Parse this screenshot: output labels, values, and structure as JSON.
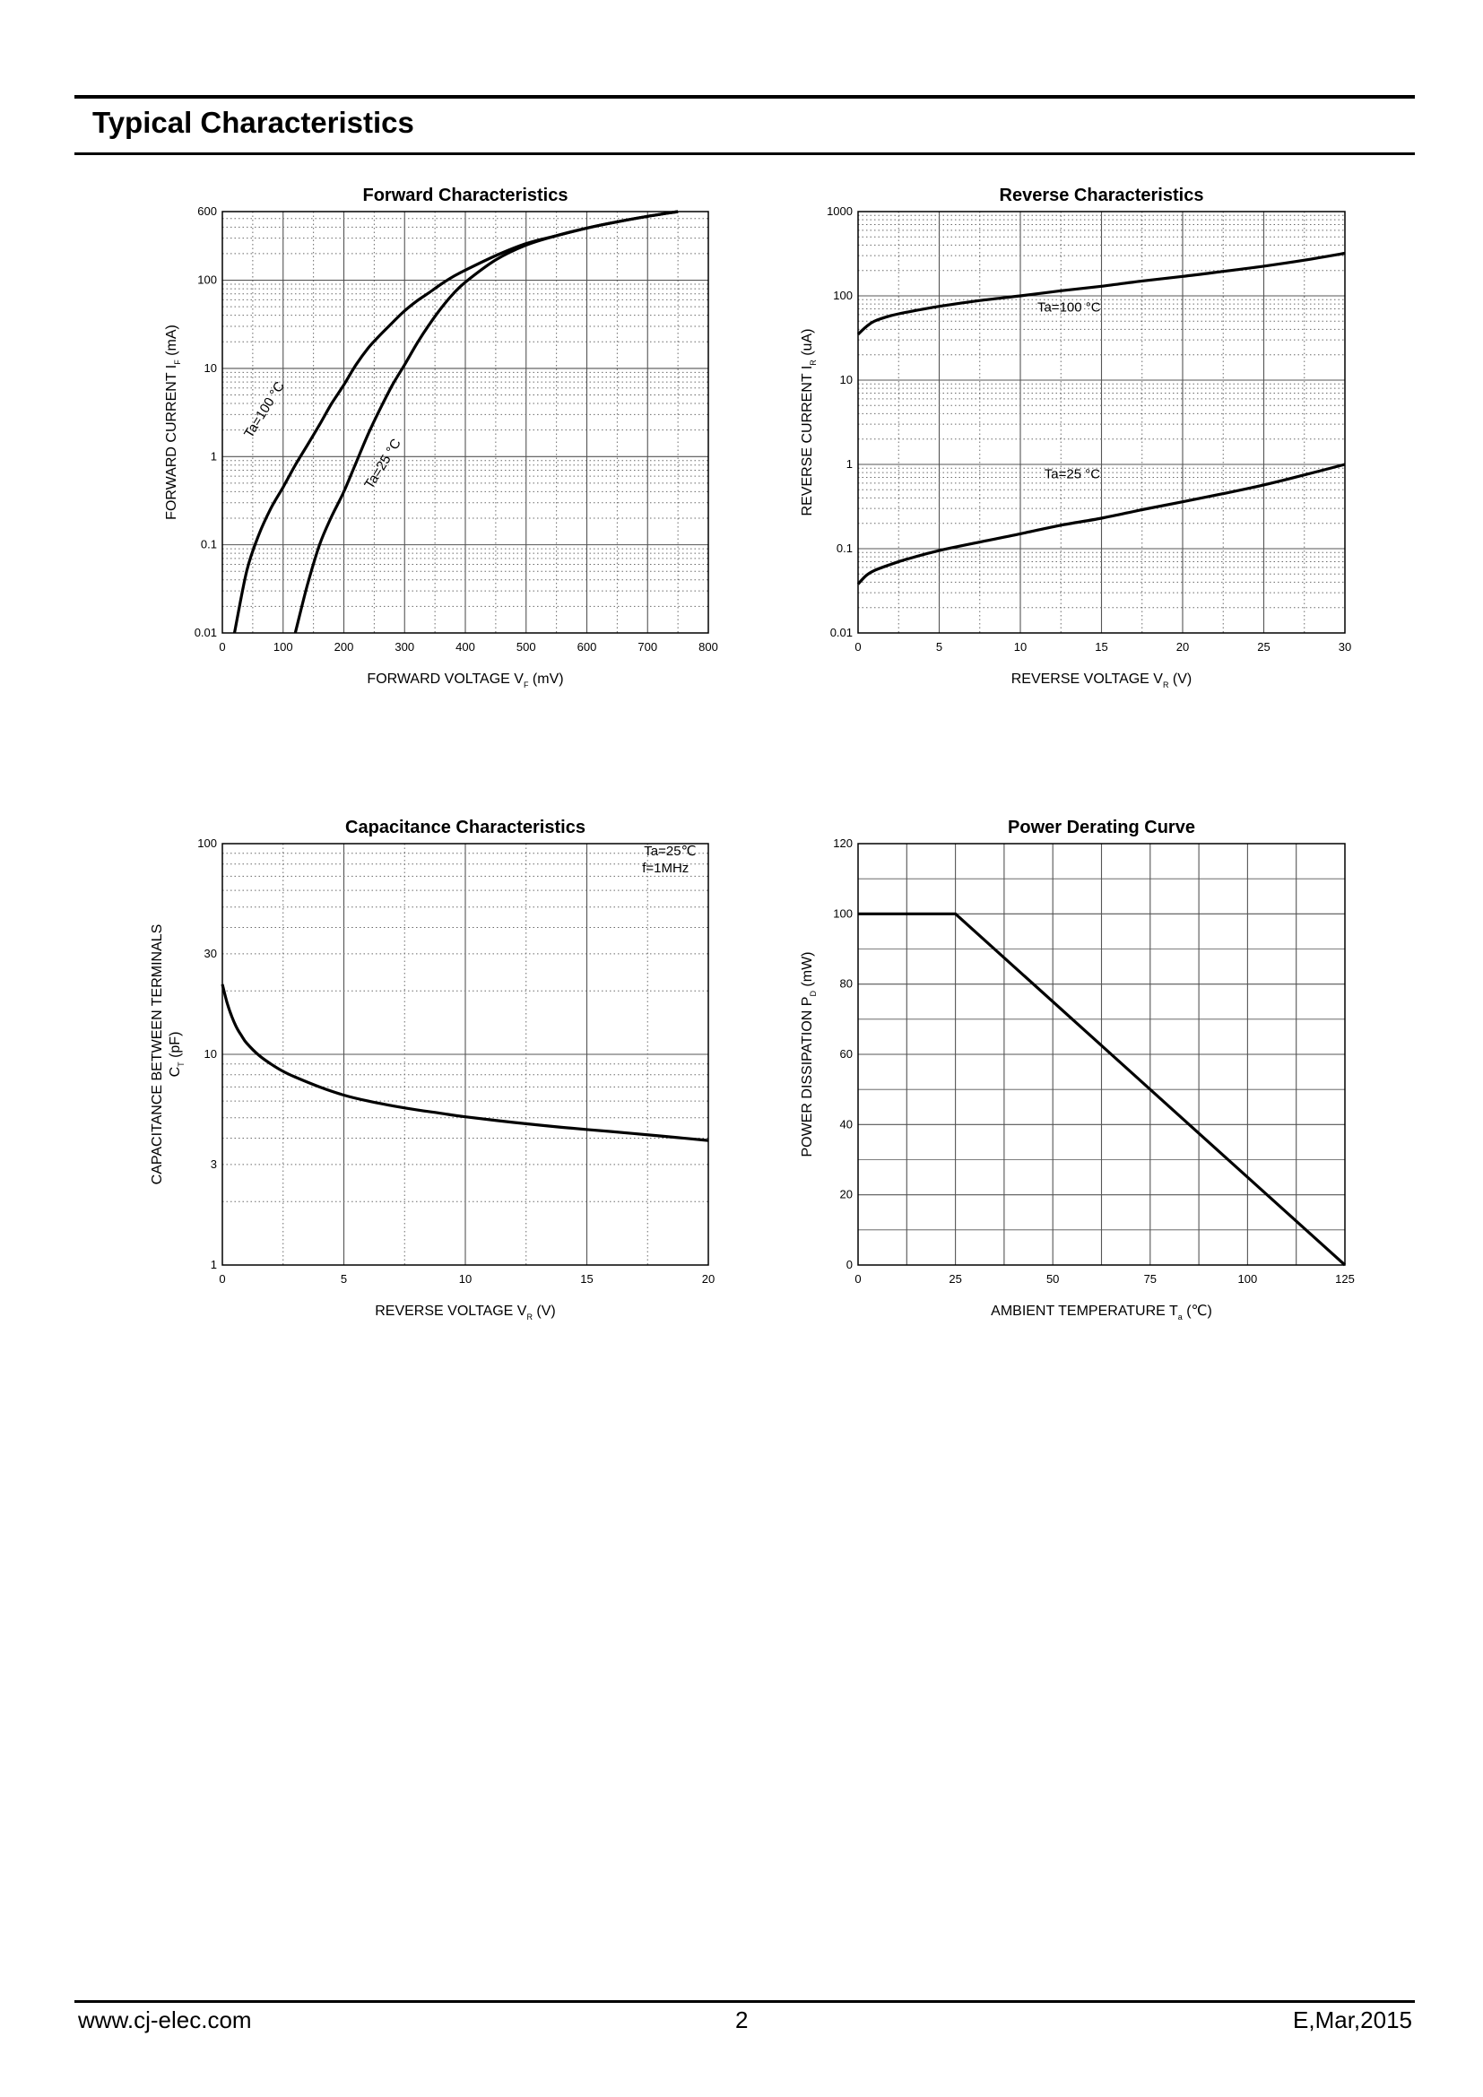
{
  "header": {
    "title": "Typical Characteristics"
  },
  "footer": {
    "website": "www.cj-elec.com",
    "page_number": "2",
    "revision": "E,Mar,2015"
  },
  "chart_data": [
    {
      "id": "forward",
      "type": "line",
      "title": "Forward    Characteristics",
      "xlabel": {
        "main": "FORWARD VOLTAGE    V",
        "sub": "F",
        "unit": "(mV)"
      },
      "ylabel": {
        "main": "FORWARD CURRENT    I",
        "sub": "F",
        "unit": "(mA)"
      },
      "x_scale": "linear",
      "y_scale": "log",
      "xlim": [
        0,
        800
      ],
      "ylim": [
        0.01,
        600
      ],
      "x_ticks": [
        {
          "v": 0,
          "label": "0"
        },
        {
          "v": 100,
          "label": "100"
        },
        {
          "v": 200,
          "label": "200"
        },
        {
          "v": 300,
          "label": "300"
        },
        {
          "v": 400,
          "label": "400"
        },
        {
          "v": 500,
          "label": "500"
        },
        {
          "v": 600,
          "label": "600"
        },
        {
          "v": 700,
          "label": "700"
        },
        {
          "v": 800,
          "label": "800"
        }
      ],
      "y_ticks": [
        {
          "v": 0.01,
          "label": "0.01"
        },
        {
          "v": 0.1,
          "label": "0.1"
        },
        {
          "v": 1,
          "label": "1"
        },
        {
          "v": 10,
          "label": "10"
        },
        {
          "v": 100,
          "label": "100"
        },
        {
          "v": 600,
          "label": "600"
        }
      ],
      "grid": true,
      "series": [
        {
          "name": "Ta=100 °C",
          "x": [
            20,
            40,
            60,
            80,
            100,
            120,
            140,
            160,
            180,
            200,
            220,
            240,
            260,
            280,
            300,
            320,
            340,
            360,
            380,
            400,
            450,
            500,
            550,
            600,
            650,
            700,
            750
          ],
          "y": [
            0.01,
            0.05,
            0.13,
            0.26,
            0.45,
            0.8,
            1.35,
            2.3,
            4,
            6.5,
            11,
            17,
            24,
            33,
            45,
            58,
            72,
            90,
            110,
            130,
            190,
            260,
            320,
            390,
            460,
            530,
            600
          ]
        },
        {
          "name": "Ta=25 °C",
          "x": [
            120,
            140,
            160,
            180,
            200,
            220,
            240,
            260,
            280,
            300,
            320,
            340,
            360,
            380,
            400,
            450,
            500,
            550,
            600,
            650,
            700,
            750
          ],
          "y": [
            0.01,
            0.035,
            0.1,
            0.21,
            0.4,
            0.85,
            1.8,
            3.5,
            6.5,
            11,
            19,
            31,
            48,
            70,
            95,
            170,
            250,
            320,
            390,
            460,
            530,
            600
          ]
        }
      ],
      "annotations": [
        {
          "text": "Ta=100 °C",
          "x": 75,
          "y": 3.2,
          "angle": -58
        },
        {
          "text": "Ta=25 °C",
          "x": 270,
          "y": 0.78,
          "angle": -58
        }
      ]
    },
    {
      "id": "reverse",
      "type": "line",
      "title": "Reverse    Characteristics",
      "xlabel": {
        "main": "REVERSE VOLTAGE    V",
        "sub": "R",
        "unit": "(V)"
      },
      "ylabel": {
        "main": "REVERSE CURRENT    I",
        "sub": "R",
        "unit": "(uA)"
      },
      "x_scale": "linear",
      "y_scale": "log",
      "xlim": [
        0,
        30
      ],
      "ylim": [
        0.01,
        1000
      ],
      "x_ticks": [
        {
          "v": 0,
          "label": "0"
        },
        {
          "v": 5,
          "label": "5"
        },
        {
          "v": 10,
          "label": "10"
        },
        {
          "v": 15,
          "label": "15"
        },
        {
          "v": 20,
          "label": "20"
        },
        {
          "v": 25,
          "label": "25"
        },
        {
          "v": 30,
          "label": "30"
        }
      ],
      "y_ticks": [
        {
          "v": 0.01,
          "label": "0.01"
        },
        {
          "v": 0.1,
          "label": "0.1"
        },
        {
          "v": 1,
          "label": "1"
        },
        {
          "v": 10,
          "label": "10"
        },
        {
          "v": 100,
          "label": "100"
        },
        {
          "v": 1000,
          "label": "1000"
        }
      ],
      "grid": true,
      "series": [
        {
          "name": "Ta=100 °C",
          "x": [
            0,
            0.5,
            1,
            2,
            3,
            5,
            7.5,
            10,
            12.5,
            15,
            17.5,
            20,
            22.5,
            25,
            27.5,
            30
          ],
          "y": [
            35,
            43,
            50,
            58,
            64,
            75,
            88,
            100,
            115,
            130,
            150,
            170,
            195,
            225,
            265,
            320
          ]
        },
        {
          "name": "Ta=25 °C",
          "x": [
            0,
            0.5,
            1,
            2,
            3,
            5,
            7.5,
            10,
            12.5,
            15,
            17.5,
            20,
            22.5,
            25,
            27.5,
            30
          ],
          "y": [
            0.038,
            0.048,
            0.055,
            0.065,
            0.075,
            0.095,
            0.12,
            0.15,
            0.19,
            0.23,
            0.29,
            0.36,
            0.45,
            0.57,
            0.75,
            1.0
          ]
        }
      ],
      "annotations": [
        {
          "text": "Ta=100 °C",
          "x": 13.0,
          "y": 65,
          "angle": 0
        },
        {
          "text": "Ta=25 °C",
          "x": 13.2,
          "y": 0.68,
          "angle": 0
        }
      ]
    },
    {
      "id": "capacitance",
      "type": "line",
      "title": "Capacitance Characteristics",
      "xlabel": {
        "main": "REVERSE VOLTAGE    V",
        "sub": "R",
        "unit": "(V)"
      },
      "ylabel": {
        "main": "CAPACITANCE BETWEEN TERMINALS",
        "main2": "C",
        "sub": "T",
        "unit": "(pF)"
      },
      "x_scale": "linear",
      "y_scale": "log",
      "xlim": [
        0,
        20
      ],
      "ylim": [
        1,
        100
      ],
      "x_ticks": [
        {
          "v": 0,
          "label": "0"
        },
        {
          "v": 5,
          "label": "5"
        },
        {
          "v": 10,
          "label": "10"
        },
        {
          "v": 15,
          "label": "15"
        },
        {
          "v": 20,
          "label": "20"
        }
      ],
      "y_ticks": [
        {
          "v": 1,
          "label": "1"
        },
        {
          "v": 3,
          "label": "3"
        },
        {
          "v": 10,
          "label": "10"
        },
        {
          "v": 30,
          "label": "30"
        },
        {
          "v": 100,
          "label": "100"
        }
      ],
      "grid": true,
      "series": [
        {
          "name": "",
          "x": [
            0,
            0.2,
            0.4,
            0.6,
            0.8,
            1,
            1.5,
            2,
            2.5,
            3,
            4,
            5,
            6,
            7,
            8,
            9,
            10,
            12,
            14,
            16,
            18,
            20
          ],
          "y": [
            21.5,
            17.5,
            15.0,
            13.3,
            12.2,
            11.3,
            9.9,
            9.0,
            8.3,
            7.8,
            7.0,
            6.4,
            6.0,
            5.7,
            5.45,
            5.25,
            5.05,
            4.75,
            4.5,
            4.3,
            4.1,
            3.9
          ]
        }
      ],
      "annotations": [
        {
          "text": "Ta=25℃",
          "x": 19.5,
          "y": 88,
          "anchor": "end",
          "angle": 0
        },
        {
          "text": "f=1MHz",
          "x": 19.2,
          "y": 73,
          "anchor": "end",
          "angle": 0
        }
      ]
    },
    {
      "id": "derating",
      "type": "line",
      "title": "Power Derating Curve",
      "xlabel": {
        "main": "AMBIENT TEMPERATURE    T",
        "sub": "a",
        "unit": "(℃)"
      },
      "ylabel": {
        "main": "POWER DISSIPATION    P",
        "sub": "D",
        "unit": "(mW)"
      },
      "x_scale": "linear",
      "y_scale": "linear",
      "xlim": [
        0,
        125
      ],
      "ylim": [
        0,
        120
      ],
      "x_ticks": [
        {
          "v": 0,
          "label": "0"
        },
        {
          "v": 25,
          "label": "25"
        },
        {
          "v": 50,
          "label": "50"
        },
        {
          "v": 75,
          "label": "75"
        },
        {
          "v": 100,
          "label": "100"
        },
        {
          "v": 125,
          "label": "125"
        }
      ],
      "y_ticks": [
        {
          "v": 0,
          "label": "0"
        },
        {
          "v": 20,
          "label": "20"
        },
        {
          "v": 40,
          "label": "40"
        },
        {
          "v": 60,
          "label": "60"
        },
        {
          "v": 80,
          "label": "80"
        },
        {
          "v": 100,
          "label": "100"
        },
        {
          "v": 120,
          "label": "120"
        }
      ],
      "grid": true,
      "series": [
        {
          "name": "",
          "x": [
            0,
            25,
            125
          ],
          "y": [
            100,
            100,
            0
          ]
        }
      ],
      "annotations": []
    }
  ]
}
